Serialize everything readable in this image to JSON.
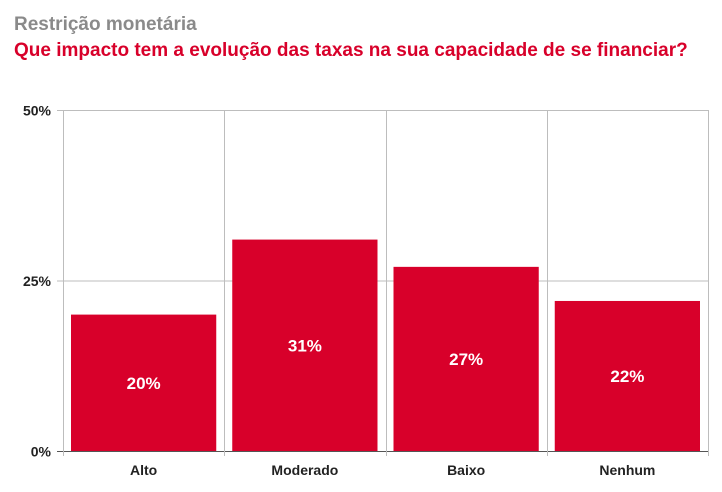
{
  "header": {
    "supertitle": "Restrição monetária",
    "title": "Que impacto tem a evolução das taxas na sua capacidade de se financiar?"
  },
  "colors": {
    "bar": "#d8002a",
    "title": "#d8002a",
    "supertitle": "#8a8a8a",
    "grid": "#bdbdbd"
  },
  "chart_data": {
    "type": "bar",
    "title": "Que impacto tem a evolução das taxas na sua capacidade de se financiar?",
    "subtitle": "Restrição monetária",
    "xlabel": "",
    "ylabel": "",
    "categories": [
      "Alto",
      "Moderado",
      "Baixo",
      "Nenhum"
    ],
    "values": [
      20,
      31,
      27,
      22
    ],
    "value_labels": [
      "20%",
      "31%",
      "27%",
      "22%"
    ],
    "ylim": [
      0,
      50
    ],
    "yticks": [
      0,
      25,
      50
    ],
    "ytick_labels": [
      "0%",
      "25%",
      "50%"
    ],
    "grid": true,
    "legend": "none"
  }
}
